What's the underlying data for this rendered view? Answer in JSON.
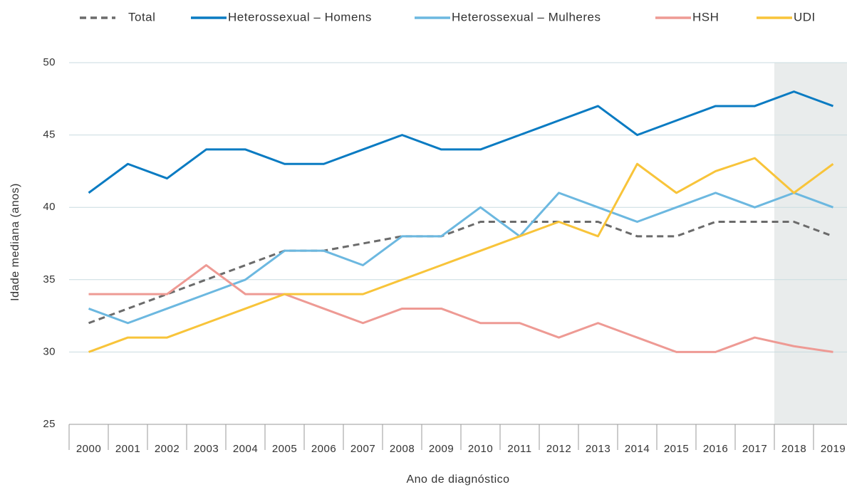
{
  "chart_data": {
    "type": "line",
    "x_label": "Ano de diagnóstico",
    "y_label": "Idade mediana (anos)",
    "categories": [
      "2000",
      "2001",
      "2002",
      "2003",
      "2004",
      "2005",
      "2006",
      "2007",
      "2008",
      "2009",
      "2010",
      "2011",
      "2012",
      "2013",
      "2014",
      "2015",
      "2016",
      "2017",
      "2018",
      "2019"
    ],
    "ylim": [
      25,
      50
    ],
    "yticks": [
      25,
      30,
      35,
      40,
      45,
      50
    ],
    "grid": true,
    "legend": "top",
    "series": [
      {
        "name": "Total",
        "color": "#6b6b6b",
        "dashed": true,
        "values": [
          32,
          33,
          34,
          35,
          36,
          37,
          37,
          37.5,
          38,
          38,
          39,
          39,
          39,
          39,
          38,
          38,
          39,
          39,
          39,
          38
        ]
      },
      {
        "name": "Heterossexual – Homens",
        "color": "#0a7bc2",
        "values": [
          41,
          43,
          42,
          44,
          44,
          43,
          43,
          44,
          45,
          44,
          44,
          45,
          46,
          47,
          45,
          46,
          47,
          47,
          48,
          47
        ]
      },
      {
        "name": "Heterossexual – Mulheres",
        "color": "#6cb8e0",
        "values": [
          33,
          32,
          33,
          34,
          35,
          37,
          37,
          36,
          38,
          38,
          40,
          38,
          41,
          40,
          39,
          40,
          41,
          40,
          41,
          40
        ]
      },
      {
        "name": "HSH",
        "color": "#ee9a94",
        "values": [
          34,
          34,
          34,
          36,
          34,
          34,
          33,
          32,
          33,
          33,
          32,
          32,
          31,
          32,
          31,
          30,
          30,
          31,
          30.4,
          30
        ]
      },
      {
        "name": "UDI",
        "color": "#f8c43a",
        "values": [
          30,
          31,
          31,
          32,
          33,
          34,
          34,
          34,
          35,
          36,
          37,
          38,
          39,
          38,
          43,
          41,
          42.5,
          43.4,
          41,
          43
        ]
      }
    ]
  }
}
